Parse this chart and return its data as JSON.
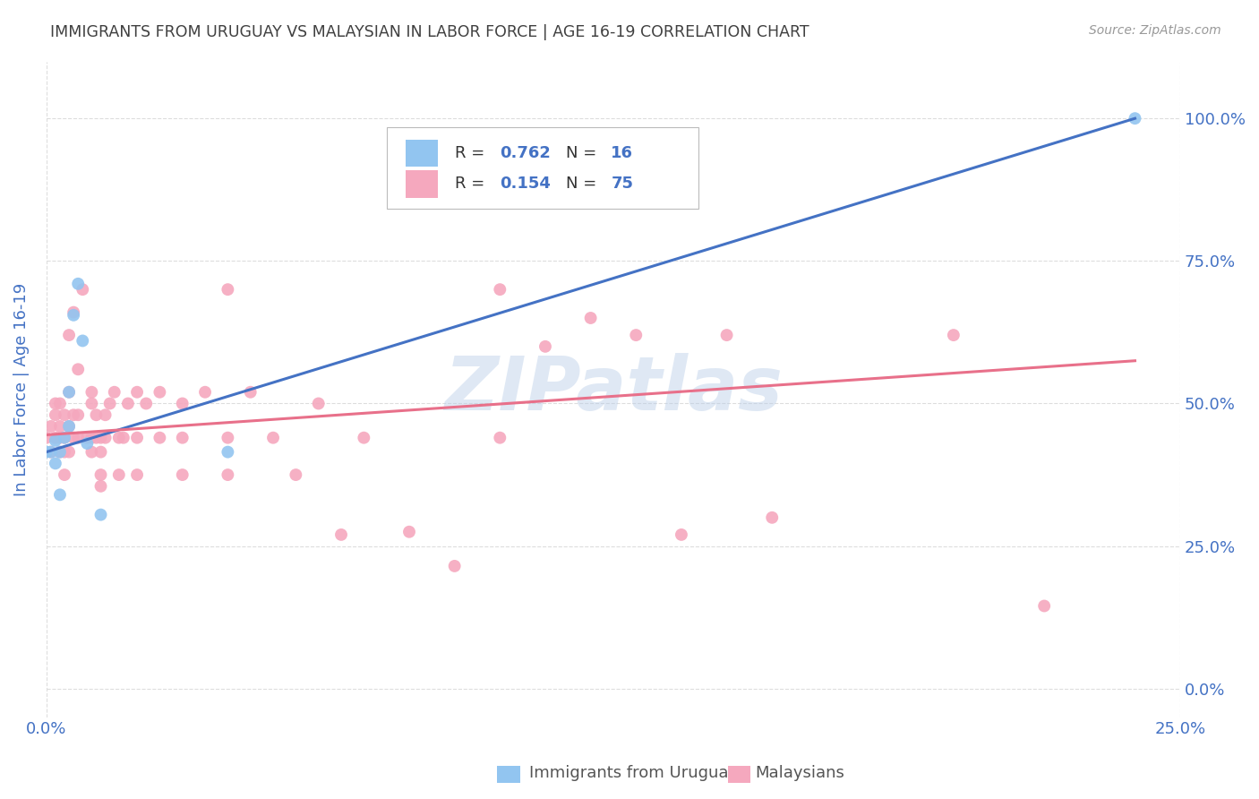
{
  "title": "IMMIGRANTS FROM URUGUAY VS MALAYSIAN IN LABOR FORCE | AGE 16-19 CORRELATION CHART",
  "source": "Source: ZipAtlas.com",
  "ylabel": "In Labor Force | Age 16-19",
  "xlim": [
    0.0,
    0.25
  ],
  "ylim": [
    -0.05,
    1.1
  ],
  "ytick_values": [
    0.0,
    0.25,
    0.5,
    0.75,
    1.0
  ],
  "ytick_labels": [
    "0.0%",
    "25.0%",
    "50.0%",
    "75.0%",
    "100.0%"
  ],
  "xtick_values": [
    0.0,
    0.25
  ],
  "xtick_labels": [
    "0.0%",
    "25.0%"
  ],
  "watermark": "ZIPatlas",
  "uruguay_color": "#92C5F0",
  "malaysian_color": "#F5A8BE",
  "uruguay_line_color": "#4472C4",
  "malaysian_line_color": "#E8708A",
  "title_color": "#404040",
  "axis_label_color": "#4472C4",
  "tick_color": "#4472C4",
  "background_color": "#FFFFFF",
  "grid_color": "#DDDDDD",
  "legend_R_uru": "0.762",
  "legend_N_uru": "16",
  "legend_R_mal": "0.154",
  "legend_N_mal": "75",
  "uruguay_scatter": [
    [
      0.001,
      0.415
    ],
    [
      0.002,
      0.435
    ],
    [
      0.002,
      0.395
    ],
    [
      0.003,
      0.415
    ],
    [
      0.003,
      0.34
    ],
    [
      0.004,
      0.44
    ],
    [
      0.005,
      0.52
    ],
    [
      0.005,
      0.46
    ],
    [
      0.006,
      0.655
    ],
    [
      0.007,
      0.71
    ],
    [
      0.008,
      0.61
    ],
    [
      0.009,
      0.43
    ],
    [
      0.012,
      0.305
    ],
    [
      0.04,
      0.415
    ],
    [
      0.0,
      0.415
    ],
    [
      0.24,
      1.0
    ]
  ],
  "malaysian_scatter": [
    [
      0.0,
      0.44
    ],
    [
      0.001,
      0.46
    ],
    [
      0.001,
      0.415
    ],
    [
      0.002,
      0.48
    ],
    [
      0.002,
      0.44
    ],
    [
      0.002,
      0.5
    ],
    [
      0.003,
      0.44
    ],
    [
      0.003,
      0.46
    ],
    [
      0.003,
      0.415
    ],
    [
      0.003,
      0.5
    ],
    [
      0.004,
      0.44
    ],
    [
      0.004,
      0.48
    ],
    [
      0.004,
      0.415
    ],
    [
      0.004,
      0.375
    ],
    [
      0.005,
      0.46
    ],
    [
      0.005,
      0.62
    ],
    [
      0.005,
      0.52
    ],
    [
      0.005,
      0.415
    ],
    [
      0.006,
      0.44
    ],
    [
      0.006,
      0.48
    ],
    [
      0.006,
      0.66
    ],
    [
      0.007,
      0.44
    ],
    [
      0.007,
      0.48
    ],
    [
      0.007,
      0.56
    ],
    [
      0.008,
      0.7
    ],
    [
      0.009,
      0.44
    ],
    [
      0.01,
      0.5
    ],
    [
      0.01,
      0.44
    ],
    [
      0.01,
      0.415
    ],
    [
      0.01,
      0.52
    ],
    [
      0.011,
      0.44
    ],
    [
      0.011,
      0.48
    ],
    [
      0.012,
      0.44
    ],
    [
      0.012,
      0.375
    ],
    [
      0.012,
      0.355
    ],
    [
      0.012,
      0.415
    ],
    [
      0.013,
      0.44
    ],
    [
      0.013,
      0.48
    ],
    [
      0.014,
      0.5
    ],
    [
      0.015,
      0.52
    ],
    [
      0.016,
      0.44
    ],
    [
      0.016,
      0.375
    ],
    [
      0.017,
      0.44
    ],
    [
      0.018,
      0.5
    ],
    [
      0.02,
      0.44
    ],
    [
      0.02,
      0.52
    ],
    [
      0.02,
      0.375
    ],
    [
      0.022,
      0.5
    ],
    [
      0.025,
      0.52
    ],
    [
      0.025,
      0.44
    ],
    [
      0.03,
      0.5
    ],
    [
      0.03,
      0.375
    ],
    [
      0.03,
      0.44
    ],
    [
      0.035,
      0.52
    ],
    [
      0.04,
      0.44
    ],
    [
      0.04,
      0.375
    ],
    [
      0.04,
      0.7
    ],
    [
      0.045,
      0.52
    ],
    [
      0.05,
      0.44
    ],
    [
      0.055,
      0.375
    ],
    [
      0.06,
      0.5
    ],
    [
      0.065,
      0.27
    ],
    [
      0.07,
      0.44
    ],
    [
      0.08,
      0.275
    ],
    [
      0.09,
      0.215
    ],
    [
      0.1,
      0.7
    ],
    [
      0.1,
      0.44
    ],
    [
      0.11,
      0.6
    ],
    [
      0.12,
      0.65
    ],
    [
      0.13,
      0.62
    ],
    [
      0.14,
      0.27
    ],
    [
      0.15,
      0.62
    ],
    [
      0.16,
      0.3
    ],
    [
      0.2,
      0.62
    ],
    [
      0.22,
      0.145
    ]
  ],
  "uruguay_trendline": [
    [
      0.0,
      0.415
    ],
    [
      0.24,
      1.0
    ]
  ],
  "malaysian_trendline": [
    [
      0.0,
      0.445
    ],
    [
      0.24,
      0.575
    ]
  ]
}
